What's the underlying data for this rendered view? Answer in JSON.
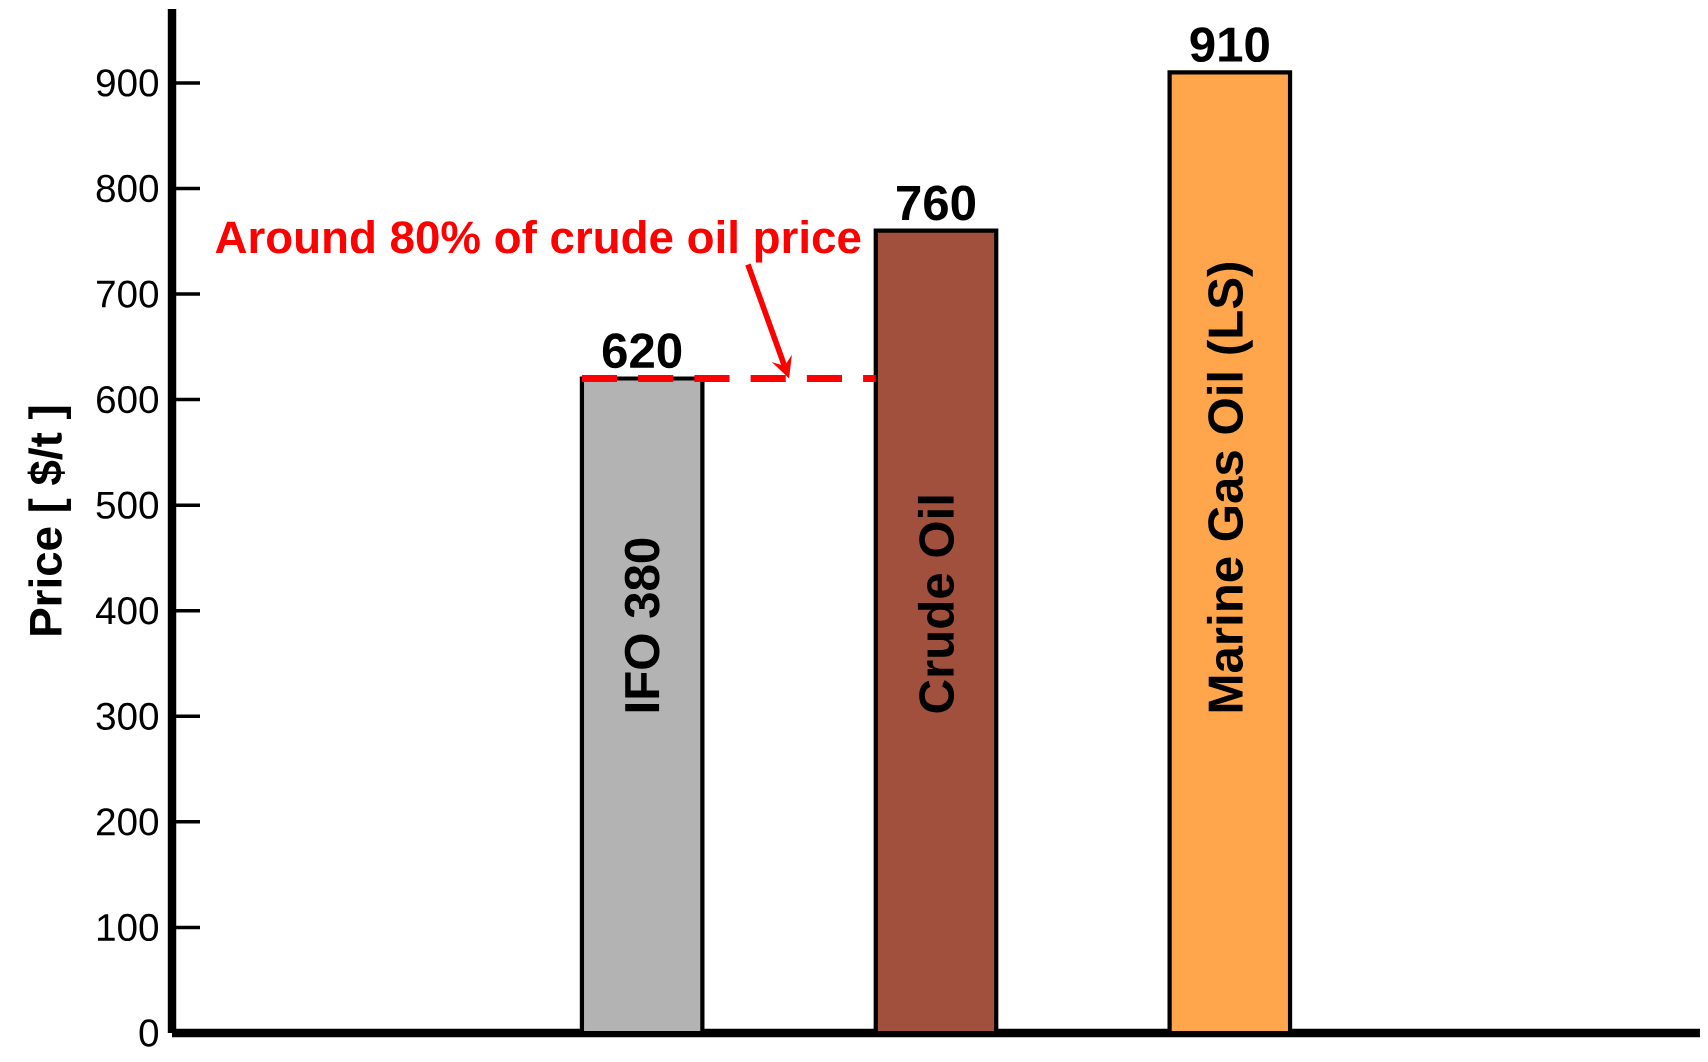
{
  "chart_data": {
    "type": "bar",
    "ylabel": "Price [ $/t ]",
    "categories": [
      "IFO 380",
      "Crude Oil",
      "Marine Gas Oil  (LS)"
    ],
    "values": [
      620,
      760,
      910
    ],
    "colors": [
      "#b3b3b3",
      "#a0503c",
      "#ffa64d"
    ],
    "data_labels": true,
    "ylim": [
      0,
      970
    ],
    "yticks": [
      0,
      100,
      200,
      300,
      400,
      500,
      600,
      700,
      800,
      900
    ],
    "ref_lines": [
      {
        "axis": "y",
        "value": 620,
        "label": "Around 80% of crude oil price",
        "color": "#ff0000",
        "line_style": "dashed"
      }
    ]
  }
}
